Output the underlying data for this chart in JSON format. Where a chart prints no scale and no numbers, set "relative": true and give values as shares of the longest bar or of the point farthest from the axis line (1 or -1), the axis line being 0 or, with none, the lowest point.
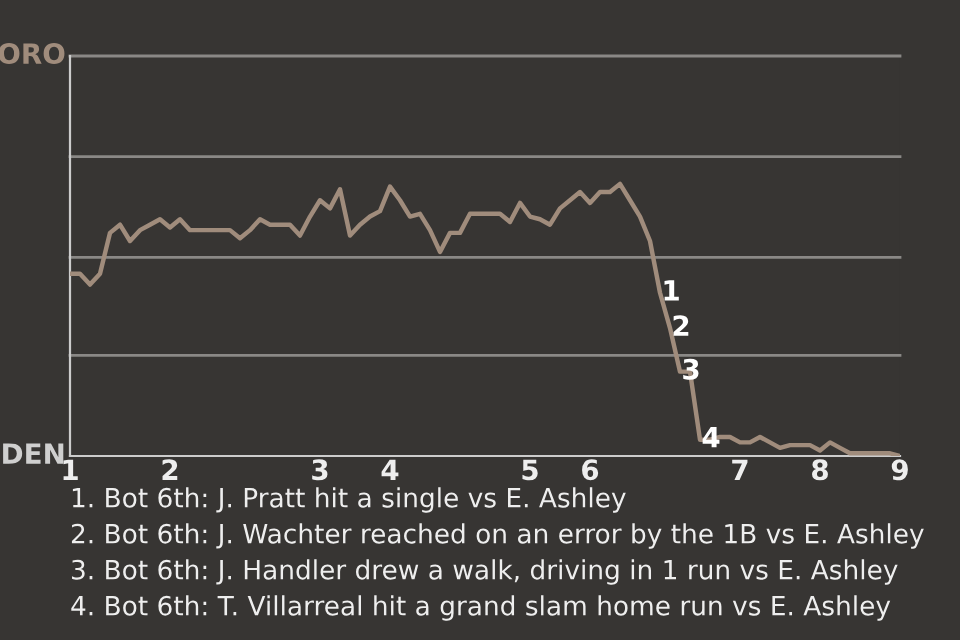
{
  "chart_data": {
    "type": "line",
    "relative": true,
    "categories": [
      "1",
      null,
      null,
      null,
      null,
      null,
      null,
      null,
      null,
      null,
      "2",
      null,
      null,
      null,
      null,
      null,
      null,
      null,
      null,
      null,
      null,
      null,
      null,
      null,
      null,
      "3",
      null,
      null,
      null,
      null,
      null,
      null,
      "4",
      null,
      null,
      null,
      null,
      null,
      null,
      null,
      null,
      null,
      null,
      null,
      null,
      null,
      "5",
      null,
      null,
      null,
      null,
      null,
      "6",
      null,
      null,
      null,
      null,
      null,
      null,
      null,
      null,
      null,
      null,
      null,
      null,
      null,
      null,
      "7",
      null,
      null,
      null,
      null,
      null,
      null,
      null,
      "8",
      null,
      null,
      null,
      null,
      null,
      null,
      null,
      "9"
    ],
    "series": [
      {
        "color": "#a08c7c",
        "values": [
          0.67,
          0.67,
          0.63,
          0.67,
          0.82,
          0.85,
          0.79,
          0.83,
          0.85,
          0.87,
          0.84,
          0.87,
          0.83,
          0.83,
          0.83,
          0.83,
          0.83,
          0.8,
          0.83,
          0.87,
          0.85,
          0.85,
          0.85,
          0.81,
          0.88,
          0.94,
          0.91,
          0.98,
          0.81,
          0.85,
          0.88,
          0.9,
          0.99,
          0.94,
          0.88,
          0.89,
          0.83,
          0.75,
          0.82,
          0.82,
          0.89,
          0.89,
          0.89,
          0.89,
          0.86,
          0.93,
          0.88,
          0.87,
          0.85,
          0.91,
          0.94,
          0.97,
          0.93,
          0.97,
          0.97,
          1,
          0.94,
          0.88,
          0.79,
          0.6,
          0.47,
          0.31,
          0.31,
          0.06,
          0.06,
          0.07,
          0.07,
          0.05,
          0.05,
          0.07,
          0.05,
          0.03,
          0.04,
          0.04,
          0.04,
          0.02,
          0.05,
          0.03,
          0.01,
          0.01,
          0.01,
          0.01,
          0.01,
          0
        ]
      }
    ],
    "ref_lines": [
      {
        "axis": "y",
        "value": 0.37,
        "color": "#8a8886"
      },
      {
        "axis": "y",
        "value": 0.73,
        "color": "#8a8886"
      },
      {
        "axis": "y",
        "value": 1.1,
        "color": "#8a8886"
      },
      {
        "axis": "y",
        "value": 1.47,
        "color": "#8a8886"
      }
    ],
    "annotations": [
      "ORO",
      "DEN",
      {
        "text": "1",
        "y": 0.6
      },
      {
        "text": "2",
        "y": 0.47
      },
      {
        "text": "3",
        "y": 0.31
      },
      {
        "text": "4",
        "y": 0.06
      },
      "1. Bot 6th: J. Pratt hit a single vs E. Ashley",
      "2. Bot 6th: J. Wachter reached on an error by the 1B vs E. Ashley",
      "3. Bot 6th: J. Handler drew a walk, driving in 1 run vs E. Ashley",
      "4. Bot 6th: T. Villarreal hit a grand slam home run vs E. Ashley"
    ],
    "marker": "none",
    "line_style": "solid"
  }
}
